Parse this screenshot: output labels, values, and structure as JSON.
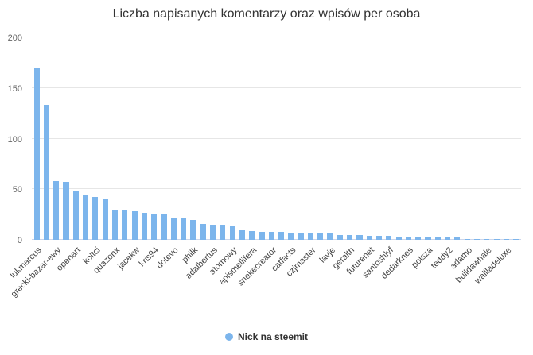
{
  "chart_data": {
    "type": "bar",
    "title": "Liczba napisanych komentarzy oraz wpisów per osoba",
    "legend": "Nick na steemit",
    "legend_position": "bottom",
    "grid": true,
    "bar_color": "#7cb5ec",
    "gridline_color": "#e6e6e6",
    "ylim": [
      0,
      200
    ],
    "yticks": [
      0,
      50,
      100,
      150,
      200
    ],
    "xlabel": "",
    "ylabel": "",
    "note": "Axis labels shown for every second bar only",
    "categories": [
      "lukmarcus",
      "",
      "grecki-bazar-ewy",
      "",
      "openart",
      "",
      "koltci",
      "",
      "quazonx",
      "",
      "jacekw",
      "",
      "kris94",
      "",
      "dotevo",
      "",
      "philk",
      "",
      "adalbertus",
      "",
      "atomowy",
      "",
      "apismellifera",
      "",
      "snekecreator",
      "",
      "catfacts",
      "",
      "czjmaster",
      "",
      "lavje",
      "",
      "geralth",
      "",
      "futurenet",
      "",
      "santoshlyf",
      "",
      "dedarknes",
      "",
      "polsza",
      "",
      "teddy2",
      "",
      "adamo",
      "",
      "buildawhale",
      "",
      "wallladeluxe",
      ""
    ],
    "values": [
      170,
      133,
      58,
      57,
      48,
      45,
      42,
      40,
      30,
      29,
      28,
      27,
      26,
      25,
      22,
      21,
      20,
      16,
      15,
      15,
      14,
      10,
      9,
      8,
      8,
      8,
      7,
      7,
      6,
      6,
      6,
      5,
      5,
      5,
      4,
      4,
      4,
      3,
      3,
      3,
      2,
      2,
      2,
      2,
      1,
      1,
      1,
      1,
      1,
      1
    ]
  }
}
